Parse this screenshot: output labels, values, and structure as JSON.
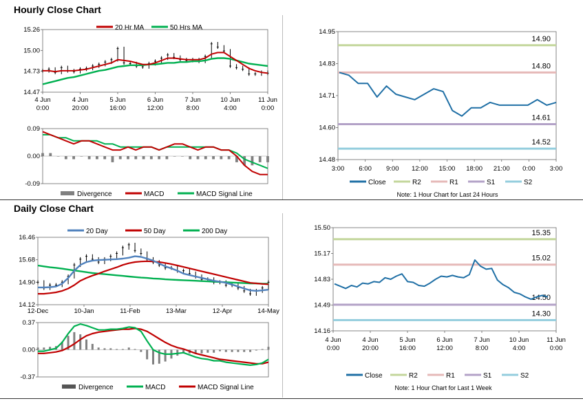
{
  "colors": {
    "ma20": "#c00000",
    "ma50": "#00b050",
    "ma200": "#00b050",
    "day20": "#4f81bd",
    "macd_hourly": "#c00000",
    "signal_hourly": "#00b050",
    "macd_daily": "#00b050",
    "signal_daily": "#c00000",
    "divergence": "#808080",
    "close": "#1f6fa5",
    "r2": "#c3d69b",
    "r1": "#e6b9b8",
    "s1": "#b3a2c7",
    "s2": "#93cddd"
  },
  "sections": {
    "hourly_title": "Hourly Close Chart",
    "daily_title": "Daily Close Chart"
  },
  "chart_data": [
    {
      "id": "hourly-price",
      "type": "line",
      "title": "Hourly Close Chart",
      "ylim": [
        14.47,
        15.26
      ],
      "yticks": [
        "15.26",
        "15.00",
        "14.73",
        "14.47"
      ],
      "xticks": [
        "4 Jun\n0:00",
        "4 Jun\n20:00",
        "5 Jun\n16:00",
        "6 Jun\n12:00",
        "7 Jun\n8:00",
        "10 Jun\n4:00",
        "11 Jun\n0:00"
      ],
      "legend": [
        "20 Hr MA",
        "50 Hrs MA"
      ],
      "price": [
        14.74,
        14.76,
        14.72,
        14.78,
        14.74,
        14.73,
        14.76,
        14.77,
        14.8,
        14.82,
        14.85,
        14.88,
        15.02,
        14.84,
        14.83,
        14.8,
        14.79,
        14.83,
        14.86,
        14.9,
        14.94,
        14.91,
        14.88,
        14.87,
        14.88,
        14.86,
        14.92,
        15.08,
        15.04,
        14.99,
        14.8,
        14.78,
        14.76,
        14.7,
        14.7,
        14.72,
        14.71
      ],
      "series": [
        {
          "name": "20 Hr MA",
          "values": [
            14.74,
            14.74,
            14.73,
            14.74,
            14.74,
            14.74,
            14.75,
            14.76,
            14.78,
            14.8,
            14.82,
            14.84,
            14.88,
            14.87,
            14.86,
            14.84,
            14.82,
            14.82,
            14.84,
            14.87,
            14.9,
            14.9,
            14.89,
            14.88,
            14.88,
            14.88,
            14.9,
            14.95,
            14.97,
            14.97,
            14.92,
            14.87,
            14.82,
            14.77,
            14.74,
            14.72,
            14.71
          ]
        },
        {
          "name": "50 Hrs MA",
          "values": [
            14.57,
            14.59,
            14.61,
            14.63,
            14.65,
            14.66,
            14.68,
            14.7,
            14.72,
            14.74,
            14.75,
            14.77,
            14.79,
            14.8,
            14.81,
            14.81,
            14.81,
            14.82,
            14.82,
            14.83,
            14.84,
            14.84,
            14.85,
            14.85,
            14.86,
            14.86,
            14.87,
            14.89,
            14.9,
            14.9,
            14.89,
            14.87,
            14.85,
            14.83,
            14.82,
            14.81,
            14.8
          ]
        }
      ]
    },
    {
      "id": "hourly-macd",
      "type": "line",
      "ylim": [
        -0.09,
        0.09
      ],
      "yticks": [
        "0.09",
        "0.00",
        "-0.09"
      ],
      "legend": [
        "Divergence",
        "MACD",
        "MACD Signal Line"
      ],
      "series": [
        {
          "name": "MACD",
          "values": [
            0.08,
            0.07,
            0.06,
            0.05,
            0.04,
            0.05,
            0.05,
            0.04,
            0.03,
            0.02,
            0.02,
            0.03,
            0.02,
            0.03,
            0.03,
            0.02,
            0.03,
            0.04,
            0.04,
            0.03,
            0.02,
            0.03,
            0.03,
            0.02,
            0.02,
            0.0,
            -0.03,
            -0.05,
            -0.06,
            -0.06
          ]
        },
        {
          "name": "MACD Signal Line",
          "values": [
            0.07,
            0.07,
            0.06,
            0.06,
            0.05,
            0.05,
            0.05,
            0.05,
            0.04,
            0.04,
            0.03,
            0.03,
            0.03,
            0.03,
            0.03,
            0.02,
            0.03,
            0.03,
            0.03,
            0.03,
            0.03,
            0.03,
            0.03,
            0.02,
            0.02,
            0.01,
            -0.01,
            -0.02,
            -0.03,
            -0.04
          ]
        },
        {
          "name": "Divergence",
          "values": [
            0.01,
            0.01,
            0.0,
            -0.01,
            -0.01,
            0.0,
            -0.01,
            -0.01,
            -0.01,
            -0.02,
            -0.01,
            -0.01,
            -0.01,
            -0.01,
            -0.01,
            -0.01,
            -0.01,
            0.0,
            0.0,
            -0.01,
            -0.01,
            -0.01,
            -0.01,
            -0.01,
            -0.01,
            -0.02,
            -0.03,
            -0.03,
            -0.02,
            -0.02
          ]
        }
      ]
    },
    {
      "id": "hourly-levels",
      "type": "line",
      "ylim": [
        14.48,
        14.95
      ],
      "yticks": [
        "14.95",
        "14.83",
        "14.71",
        "14.60",
        "14.48"
      ],
      "xticks": [
        "3:00",
        "6:00",
        "9:00",
        "12:00",
        "15:00",
        "18:00",
        "21:00",
        "0:00",
        "3:00"
      ],
      "levels": [
        {
          "name": "R2",
          "value": 14.9,
          "label": "14.90"
        },
        {
          "name": "R1",
          "value": 14.8,
          "label": "14.80"
        },
        {
          "name": "S1",
          "value": 14.61,
          "label": "14.61"
        },
        {
          "name": "S2",
          "value": 14.52,
          "label": "14.52"
        }
      ],
      "legend": [
        "Close",
        "R2",
        "R1",
        "S1",
        "S2"
      ],
      "note": "Note: 1 Hour Chart for Last 24 Hours",
      "series": [
        {
          "name": "Close",
          "values": [
            14.8,
            14.79,
            14.76,
            14.76,
            14.71,
            14.75,
            14.72,
            14.71,
            14.7,
            14.72,
            14.74,
            14.73,
            14.66,
            14.64,
            14.67,
            14.67,
            14.69,
            14.68,
            14.68,
            14.68,
            14.68,
            14.7,
            14.68,
            14.69
          ]
        }
      ]
    },
    {
      "id": "daily-price",
      "type": "line",
      "title": "Daily Close Chart",
      "ylim": [
        14.12,
        16.46
      ],
      "yticks": [
        "16.46",
        "15.68",
        "14.90",
        "14.12"
      ],
      "xticks": [
        "12-Dec",
        "10-Jan",
        "11-Feb",
        "13-Mar",
        "12-Apr",
        "14-May"
      ],
      "legend": [
        "20 Day",
        "50 Day",
        "200 Day"
      ],
      "price": [
        14.9,
        14.7,
        14.8,
        14.8,
        14.9,
        15.1,
        15.5,
        15.7,
        15.8,
        15.7,
        15.6,
        15.7,
        15.8,
        15.9,
        16.1,
        16.2,
        16.0,
        15.9,
        15.7,
        15.6,
        15.5,
        15.4,
        15.4,
        15.3,
        15.3,
        15.2,
        15.1,
        15.0,
        15.0,
        14.9,
        14.9,
        14.8,
        14.8,
        14.7,
        14.6,
        14.5,
        14.6,
        14.7,
        14.9
      ],
      "series": [
        {
          "name": "20 Day",
          "values": [
            14.72,
            14.72,
            14.73,
            14.75,
            14.85,
            15.05,
            15.3,
            15.5,
            15.6,
            15.65,
            15.67,
            15.68,
            15.69,
            15.7,
            15.72,
            15.75,
            15.8,
            15.78,
            15.72,
            15.65,
            15.55,
            15.45,
            15.38,
            15.3,
            15.2,
            15.15,
            15.1,
            15.05,
            15.0,
            14.95,
            14.92,
            14.88,
            14.82,
            14.75,
            14.68,
            14.62,
            14.6,
            14.62,
            14.64
          ]
        },
        {
          "name": "50 Day",
          "values": [
            14.5,
            14.5,
            14.52,
            14.55,
            14.6,
            14.68,
            14.8,
            14.95,
            15.05,
            15.13,
            15.2,
            15.28,
            15.35,
            15.42,
            15.5,
            15.56,
            15.6,
            15.62,
            15.63,
            15.62,
            15.6,
            15.57,
            15.53,
            15.48,
            15.43,
            15.38,
            15.33,
            15.28,
            15.23,
            15.18,
            15.13,
            15.08,
            15.03,
            14.98,
            14.93,
            14.88,
            14.86,
            14.84,
            14.83
          ]
        },
        {
          "name": "200 Day",
          "values": [
            15.48,
            15.45,
            15.42,
            15.4,
            15.37,
            15.34,
            15.31,
            15.28,
            15.25,
            15.22,
            15.2,
            15.18,
            15.16,
            15.14,
            15.12,
            15.1,
            15.08,
            15.06,
            15.05,
            15.03,
            15.02,
            15.0,
            14.99,
            14.98,
            14.97,
            14.96,
            14.95,
            14.94,
            14.93,
            14.92,
            14.91,
            14.9,
            14.89,
            14.88,
            14.87,
            14.86,
            14.86,
            14.85,
            14.85
          ]
        }
      ]
    },
    {
      "id": "daily-macd",
      "type": "line",
      "ylim": [
        -0.37,
        0.37
      ],
      "yticks": [
        "0.37",
        "0.00",
        "-0.37"
      ],
      "legend": [
        "Divergence",
        "MACD",
        "MACD Signal Line"
      ],
      "series": [
        {
          "name": "MACD",
          "values": [
            -0.02,
            -0.02,
            0.0,
            0.02,
            0.1,
            0.22,
            0.32,
            0.35,
            0.33,
            0.3,
            0.27,
            0.27,
            0.28,
            0.28,
            0.29,
            0.31,
            0.3,
            0.25,
            0.12,
            0.0,
            -0.04,
            -0.06,
            -0.06,
            -0.05,
            -0.04,
            -0.07,
            -0.1,
            -0.12,
            -0.13,
            -0.15,
            -0.15,
            -0.17,
            -0.18,
            -0.19,
            -0.2,
            -0.21,
            -0.2,
            -0.18,
            -0.13
          ]
        },
        {
          "name": "MACD Signal Line",
          "values": [
            -0.05,
            -0.05,
            -0.04,
            -0.03,
            -0.01,
            0.03,
            0.08,
            0.14,
            0.19,
            0.22,
            0.24,
            0.25,
            0.26,
            0.27,
            0.28,
            0.28,
            0.29,
            0.28,
            0.25,
            0.2,
            0.15,
            0.1,
            0.06,
            0.03,
            0.01,
            -0.02,
            -0.05,
            -0.07,
            -0.09,
            -0.11,
            -0.13,
            -0.14,
            -0.15,
            -0.16,
            -0.17,
            -0.18,
            -0.19,
            -0.19,
            -0.17
          ]
        },
        {
          "name": "Divergence",
          "values": [
            0.03,
            0.03,
            0.04,
            0.05,
            0.11,
            0.19,
            0.24,
            0.21,
            0.14,
            0.08,
            0.03,
            0.02,
            0.02,
            0.01,
            0.01,
            0.03,
            0.01,
            -0.03,
            -0.13,
            -0.2,
            -0.19,
            -0.16,
            -0.12,
            -0.08,
            -0.05,
            -0.05,
            -0.05,
            -0.05,
            -0.04,
            -0.04,
            -0.02,
            -0.03,
            -0.03,
            -0.03,
            -0.03,
            -0.03,
            -0.01,
            0.01,
            0.04
          ]
        }
      ]
    },
    {
      "id": "daily-levels",
      "type": "line",
      "ylim": [
        14.16,
        15.5
      ],
      "yticks": [
        "15.50",
        "15.17",
        "14.83",
        "14.49",
        "14.16"
      ],
      "xticks": [
        "4 Jun\n0:00",
        "4 Jun\n20:00",
        "5 Jun\n16:00",
        "6 Jun\n12:00",
        "7 Jun\n8:00",
        "10 Jun\n4:00",
        "11 Jun\n0:00"
      ],
      "levels": [
        {
          "name": "R2",
          "value": 15.35,
          "label": "15.35"
        },
        {
          "name": "R1",
          "value": 15.02,
          "label": "15.02"
        },
        {
          "name": "S1",
          "value": 14.5,
          "label": "14.50"
        },
        {
          "name": "S2",
          "value": 14.3,
          "label": "14.30"
        }
      ],
      "legend": [
        "Close",
        "R2",
        "R1",
        "S1",
        "S2"
      ],
      "note": "Note: 1 Hour Chart for Last 1 Week",
      "series": [
        {
          "name": "Close",
          "values": [
            14.77,
            14.74,
            14.71,
            14.75,
            14.73,
            14.78,
            14.77,
            14.8,
            14.79,
            14.85,
            14.83,
            14.87,
            14.9,
            14.8,
            14.79,
            14.75,
            14.74,
            14.78,
            14.83,
            14.87,
            14.86,
            14.88,
            14.86,
            14.85,
            14.89,
            15.08,
            15.0,
            14.96,
            14.97,
            14.82,
            14.76,
            14.72,
            14.66,
            14.64,
            14.6,
            14.57,
            14.6,
            14.62,
            14.6
          ]
        }
      ]
    }
  ]
}
